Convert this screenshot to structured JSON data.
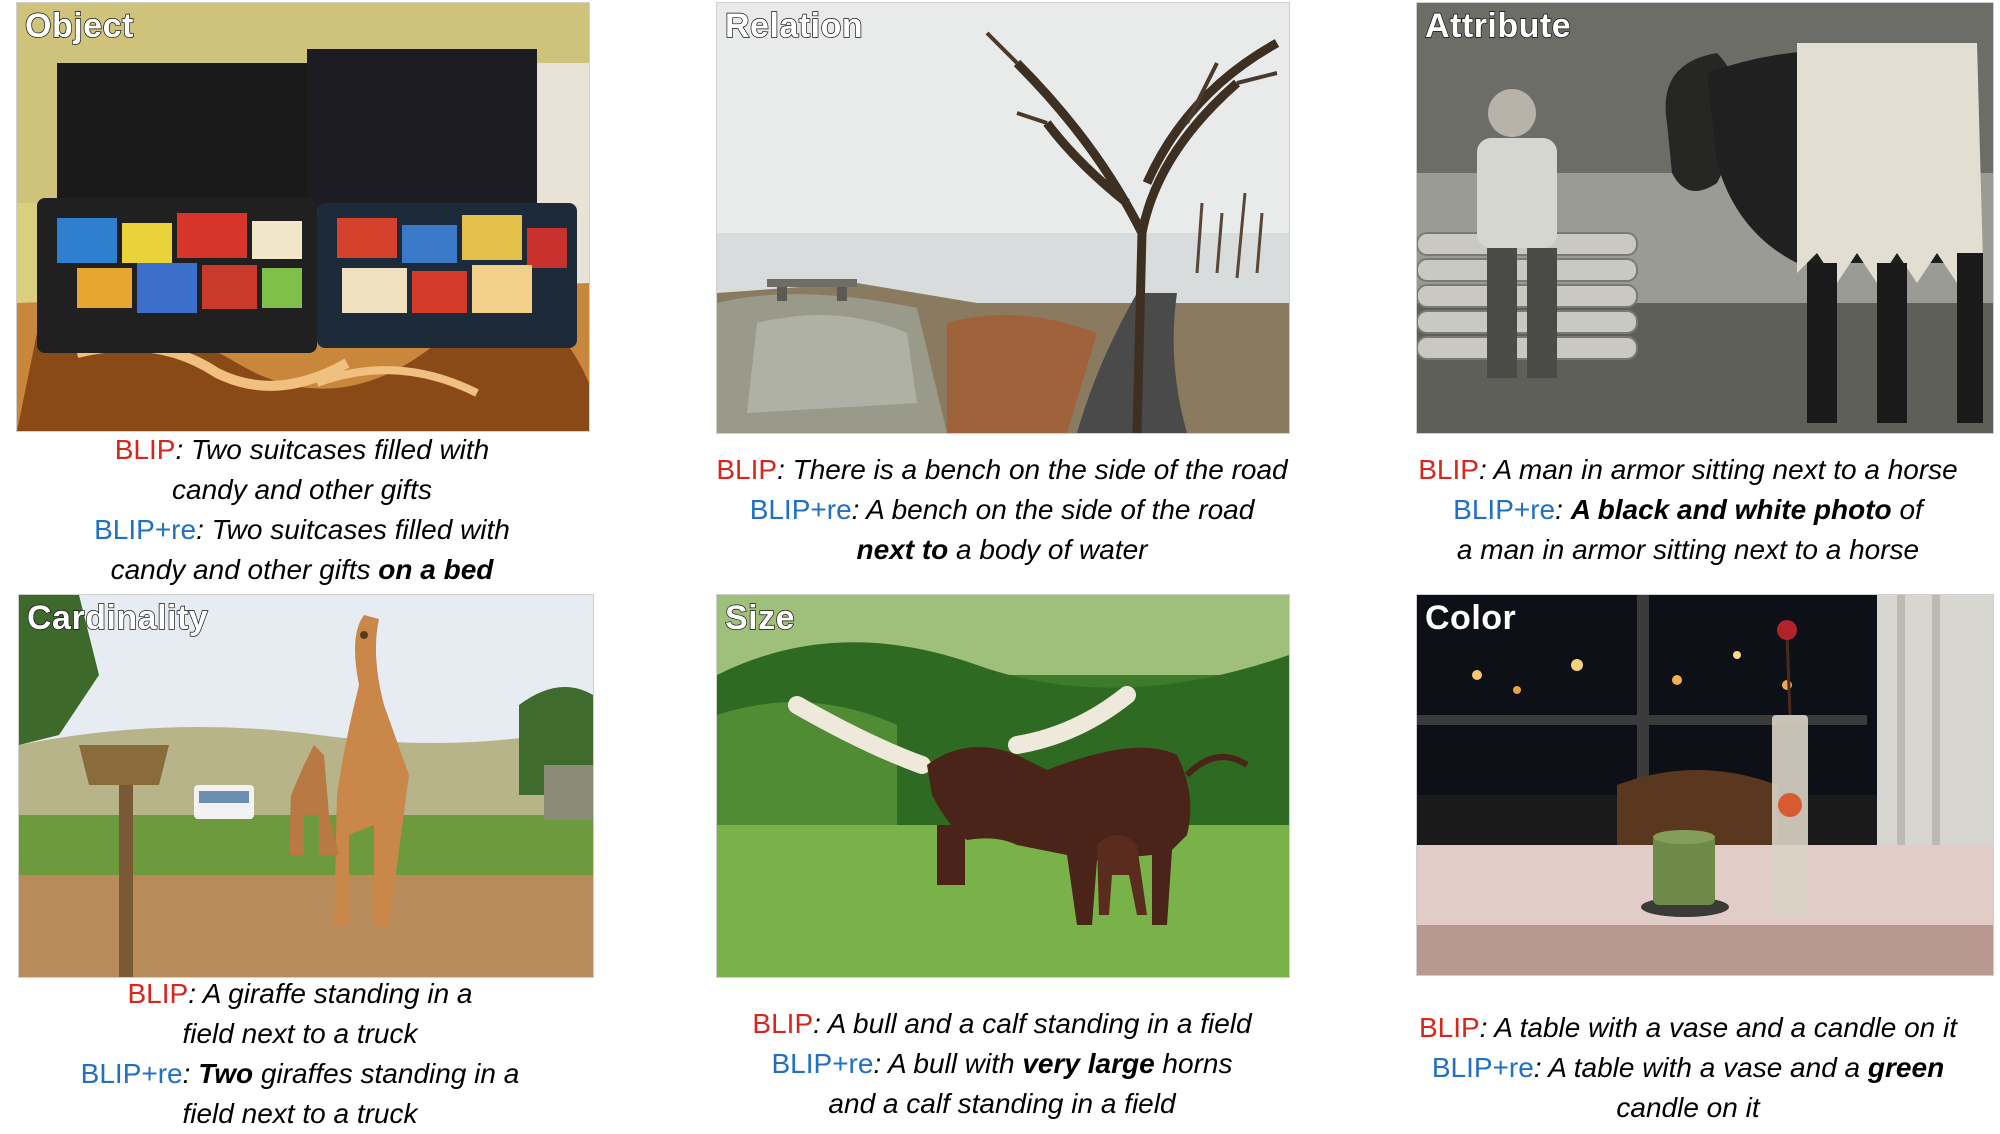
{
  "panels": [
    {
      "id": "object",
      "category": "Object",
      "blip_label": "BLIP",
      "blip_caption_lines": [
        {
          "text": ": Two suitcases filled with"
        },
        {
          "text": "candy and other gifts"
        }
      ],
      "blipre_label": "BLIP+re",
      "blipre_caption": [
        {
          "pre": ": Two suitcases filled with",
          "bold": "",
          "post": ""
        },
        {
          "pre": "candy and other gifts ",
          "bold": "on a bed",
          "post": ""
        }
      ]
    },
    {
      "id": "relation",
      "category": "Relation",
      "blip_label": "BLIP",
      "blip_caption_lines": [
        {
          "text": ": There is a bench on the side of the road"
        }
      ],
      "blipre_label": "BLIP+re",
      "blipre_caption": [
        {
          "pre": ": A bench on the side of the road",
          "bold": "",
          "post": ""
        },
        {
          "pre": "",
          "bold": "next to",
          "post": " a body of water"
        }
      ]
    },
    {
      "id": "attribute",
      "category": "Attribute",
      "blip_label": "BLIP",
      "blip_caption_lines": [
        {
          "text": ": A man in armor sitting next to a horse"
        }
      ],
      "blipre_label": "BLIP+re",
      "blipre_caption": [
        {
          "pre": ": ",
          "bold": "A black and white photo",
          "post": " of"
        },
        {
          "pre": "a man in armor sitting next to a horse",
          "bold": "",
          "post": ""
        }
      ]
    },
    {
      "id": "cardinality",
      "category": "Cardinality",
      "blip_label": "BLIP",
      "blip_caption_lines": [
        {
          "text": ": A giraffe standing in a"
        },
        {
          "text": "field next to a truck"
        }
      ],
      "blipre_label": "BLIP+re",
      "blipre_caption": [
        {
          "pre": ": ",
          "bold": "Two",
          "post": " giraffes standing in a"
        },
        {
          "pre": "field next to a truck",
          "bold": "",
          "post": ""
        }
      ]
    },
    {
      "id": "size",
      "category": "Size",
      "blip_label": "BLIP",
      "blip_caption_lines": [
        {
          "text": ": A bull and a calf standing in a field"
        }
      ],
      "blipre_label": "BLIP+re",
      "blipre_caption": [
        {
          "pre": ": A bull with ",
          "bold": "very large",
          "post": " horns"
        },
        {
          "pre": "and a calf standing in a field",
          "bold": "",
          "post": ""
        }
      ]
    },
    {
      "id": "color",
      "category": "Color",
      "blip_label": "BLIP",
      "blip_caption_lines": [
        {
          "text": ": A table with a vase and a candle on it"
        }
      ],
      "blipre_label": "BLIP+re",
      "blipre_caption": [
        {
          "pre": ": A table with a vase and a ",
          "bold": "green",
          "post": ""
        },
        {
          "pre": "candle on it",
          "bold": "",
          "post": ""
        }
      ]
    }
  ],
  "colors": {
    "blip_label": "#d7261e",
    "blipre_label": "#2171c2"
  }
}
